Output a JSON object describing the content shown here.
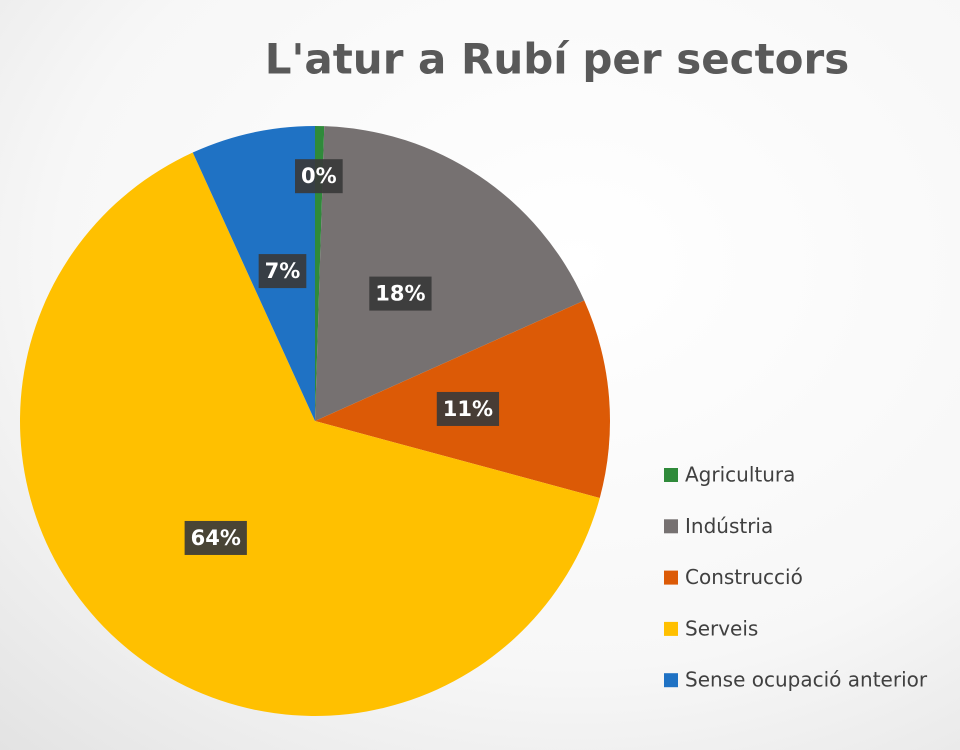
{
  "chart_data": {
    "type": "pie",
    "title": "L'atur a Rubí per sectors",
    "categories": [
      "Agricultura",
      "Indústria",
      "Construcció",
      "Serveis",
      "Sense ocupació anterior"
    ],
    "values": [
      0.5,
      17.8,
      10.9,
      64,
      6.8
    ],
    "value_labels": [
      "0%",
      "18%",
      "11%",
      "64%",
      "7%"
    ],
    "colors": [
      "#2f8a3a",
      "#767171",
      "#dc5a06",
      "#ffc000",
      "#1f72c4"
    ],
    "legend": "right"
  }
}
